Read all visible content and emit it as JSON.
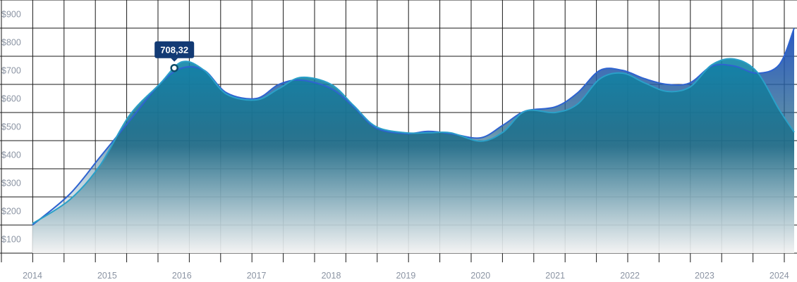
{
  "chart_data": {
    "type": "area",
    "title": "",
    "xlabel": "",
    "ylabel": "",
    "x_ticks": [
      "2014",
      "2015",
      "2016",
      "2017",
      "2018",
      "2019",
      "2020",
      "2021",
      "2022",
      "2023",
      "2024"
    ],
    "y_ticks": [
      "$100",
      "$200",
      "$300",
      "$400",
      "$500",
      "$600",
      "$700",
      "$800",
      "$900"
    ],
    "xlim": [
      2014.0,
      2024.2
    ],
    "ylim": [
      50,
      950
    ],
    "grid": true,
    "legend": "none",
    "series": [
      {
        "color": "#2e55c5",
        "x": [
          2014.0,
          2014.5,
          2014.9,
          2015.3,
          2015.7,
          2016.0,
          2016.3,
          2016.6,
          2017.0,
          2017.3,
          2017.6,
          2018.0,
          2018.3,
          2018.6,
          2019.0,
          2019.3,
          2019.6,
          2020.0,
          2020.3,
          2020.6,
          2021.0,
          2021.3,
          2021.6,
          2021.9,
          2022.2,
          2022.5,
          2022.8,
          2023.1,
          2023.4,
          2023.7,
          2024.0,
          2024.2
        ],
        "values": [
          150,
          260,
          390,
          520,
          650,
          708,
          700,
          620,
          600,
          650,
          665,
          635,
          570,
          495,
          475,
          483,
          475,
          460,
          505,
          555,
          570,
          620,
          700,
          700,
          670,
          650,
          655,
          715,
          715,
          690,
          720,
          850
        ]
      },
      {
        "color": "#3a9bb0",
        "x": [
          2014.0,
          2014.5,
          2014.9,
          2015.3,
          2015.7,
          2016.0,
          2016.3,
          2016.6,
          2017.0,
          2017.3,
          2017.6,
          2018.0,
          2018.3,
          2018.6,
          2019.0,
          2019.3,
          2019.6,
          2020.0,
          2020.3,
          2020.6,
          2021.0,
          2021.3,
          2021.6,
          2021.9,
          2022.2,
          2022.5,
          2022.8,
          2023.1,
          2023.4,
          2023.7,
          2024.0,
          2024.2
        ],
        "values": [
          155,
          240,
          360,
          540,
          650,
          730,
          700,
          615,
          595,
          635,
          675,
          650,
          575,
          500,
          478,
          478,
          478,
          448,
          480,
          555,
          550,
          580,
          670,
          690,
          655,
          625,
          640,
          720,
          740,
          695,
          560,
          480
        ]
      }
    ],
    "tooltip": {
      "x": 2015.9,
      "value": 708.32,
      "label": "708,32"
    }
  }
}
